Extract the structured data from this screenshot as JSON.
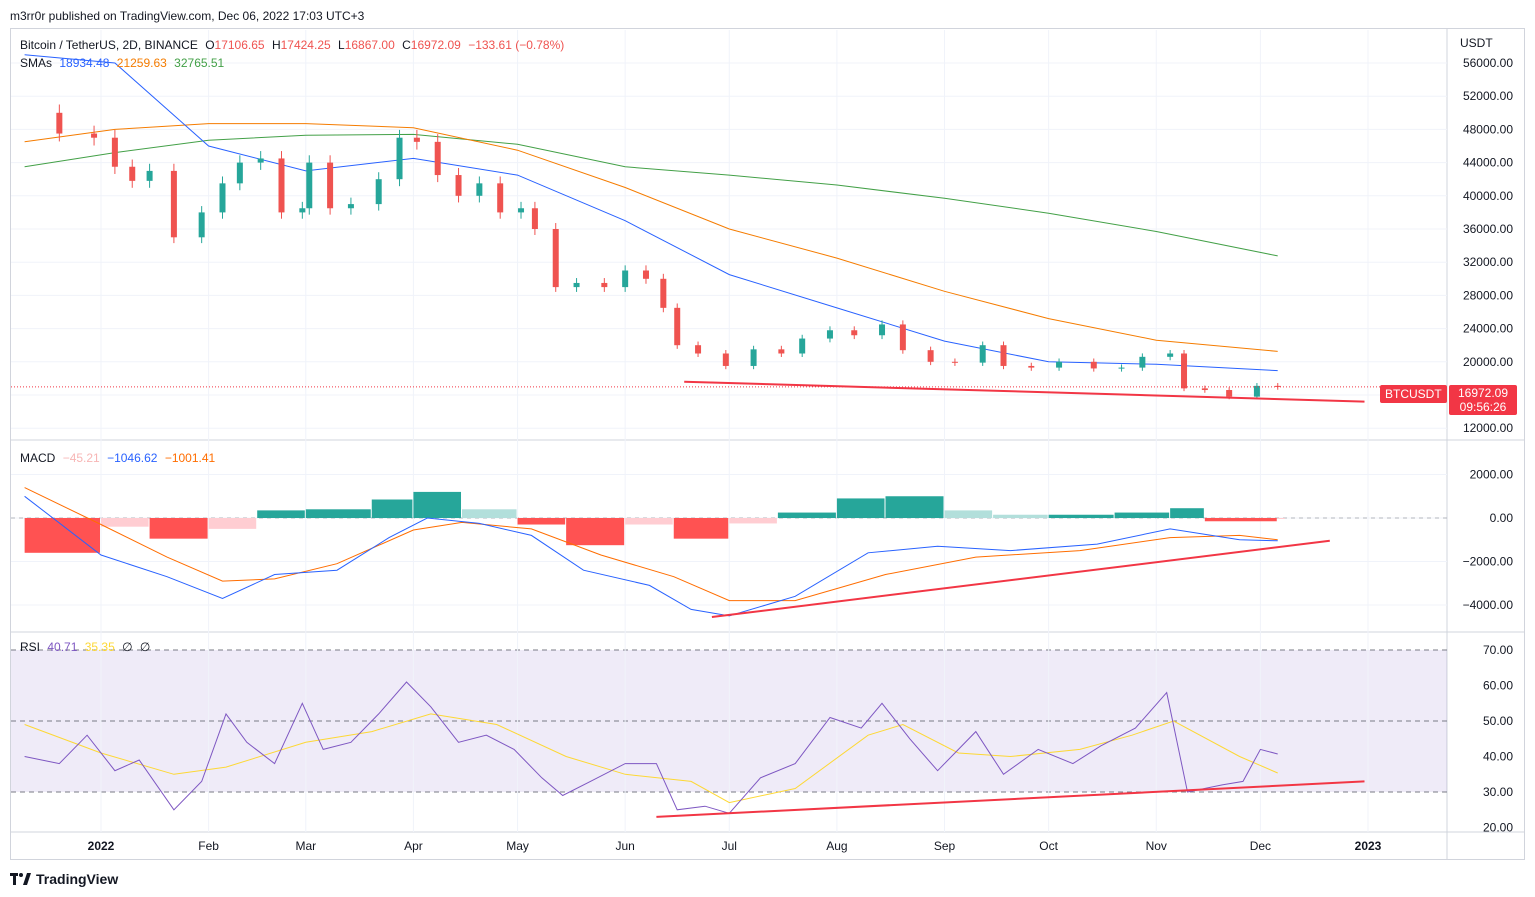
{
  "header": {
    "publisher_line": "m3rr0r published on TradingView.com, Dec 06, 2022 17:03 UTC+3"
  },
  "footer": {
    "brand": "TradingView",
    "logo_icon": "tradingview-logo-icon"
  },
  "price_pane": {
    "symbol_line": "Bitcoin / TetherUS, 2D, BINANCE",
    "ohlc": {
      "o_label": "O",
      "o": "17106.65",
      "h_label": "H",
      "h": "17424.25",
      "l_label": "L",
      "l": "16867.00",
      "c_label": "C",
      "c": "16972.09",
      "change": "−133.61 (−0.78%)"
    },
    "sma_label": "SMAs",
    "sma_values": [
      "18934.48",
      "21259.63",
      "32765.51"
    ],
    "currency": "USDT",
    "price_tag": {
      "symbol": "BTCUSDT",
      "price": "16972.09",
      "countdown": "09:56:26"
    }
  },
  "macd_pane": {
    "label": "MACD",
    "hist": "−45.21",
    "macd": "−1046.62",
    "signal": "−1001.41"
  },
  "rsi_pane": {
    "label": "RSI",
    "rsi": "40.71",
    "rsi_ma": "35.35",
    "extra1": "∅",
    "extra2": "∅"
  },
  "colors": {
    "up": "#26a69a",
    "down": "#ef5350",
    "sma_fast": "#2962ff",
    "sma_mid": "#f57c00",
    "sma_slow": "#43a047",
    "macd_line": "#2962ff",
    "signal_line": "#ff6d00",
    "rsi_line": "#7e57c2",
    "rsi_ma": "#fdd835",
    "trendline": "#f23645"
  },
  "chart_data": [
    {
      "type": "candlestick",
      "title": "Bitcoin / TetherUS, 2D, BINANCE",
      "x_ticks": [
        "2022",
        "Feb",
        "Mar",
        "Apr",
        "May",
        "Jun",
        "Jul",
        "Aug",
        "Sep",
        "Oct",
        "Nov",
        "Dec",
        "2023"
      ],
      "y_ticks": [
        12000,
        16000,
        20000,
        24000,
        28000,
        32000,
        36000,
        40000,
        44000,
        48000,
        52000,
        56000
      ],
      "ylim": [
        11000,
        58500
      ],
      "close_series_approx": [
        [
          "2021-12-10",
          50000
        ],
        [
          "2021-12-20",
          47500
        ],
        [
          "2021-12-30",
          47000
        ],
        [
          "2022-01-05",
          43500
        ],
        [
          "2022-01-10",
          41800
        ],
        [
          "2022-01-15",
          43000
        ],
        [
          "2022-01-22",
          35000
        ],
        [
          "2022-01-30",
          38000
        ],
        [
          "2022-02-05",
          41500
        ],
        [
          "2022-02-10",
          44000
        ],
        [
          "2022-02-16",
          44500
        ],
        [
          "2022-02-22",
          38000
        ],
        [
          "2022-02-28",
          38500
        ],
        [
          "2022-03-02",
          44000
        ],
        [
          "2022-03-08",
          38500
        ],
        [
          "2022-03-14",
          39000
        ],
        [
          "2022-03-22",
          42000
        ],
        [
          "2022-03-28",
          47000
        ],
        [
          "2022-04-02",
          46500
        ],
        [
          "2022-04-08",
          42500
        ],
        [
          "2022-04-14",
          40000
        ],
        [
          "2022-04-20",
          41500
        ],
        [
          "2022-04-26",
          38000
        ],
        [
          "2022-05-02",
          38500
        ],
        [
          "2022-05-06",
          36000
        ],
        [
          "2022-05-12",
          29000
        ],
        [
          "2022-05-18",
          29500
        ],
        [
          "2022-05-26",
          29000
        ],
        [
          "2022-06-01",
          31000
        ],
        [
          "2022-06-07",
          30000
        ],
        [
          "2022-06-12",
          26500
        ],
        [
          "2022-06-16",
          22000
        ],
        [
          "2022-06-22",
          21000
        ],
        [
          "2022-06-30",
          19500
        ],
        [
          "2022-07-08",
          21500
        ],
        [
          "2022-07-16",
          21000
        ],
        [
          "2022-07-22",
          22800
        ],
        [
          "2022-07-30",
          23800
        ],
        [
          "2022-08-06",
          23200
        ],
        [
          "2022-08-14",
          24500
        ],
        [
          "2022-08-20",
          21400
        ],
        [
          "2022-08-28",
          20000
        ],
        [
          "2022-09-04",
          19900
        ],
        [
          "2022-09-12",
          22000
        ],
        [
          "2022-09-18",
          19500
        ],
        [
          "2022-09-26",
          19300
        ],
        [
          "2022-10-04",
          20000
        ],
        [
          "2022-10-14",
          19200
        ],
        [
          "2022-10-22",
          19300
        ],
        [
          "2022-10-28",
          20600
        ],
        [
          "2022-11-05",
          21000
        ],
        [
          "2022-11-09",
          16800
        ],
        [
          "2022-11-15",
          16600
        ],
        [
          "2022-11-22",
          15800
        ],
        [
          "2022-11-30",
          17100
        ],
        [
          "2022-12-06",
          16972
        ]
      ],
      "sma_fast_approx": [
        [
          "2021-12-10",
          57000
        ],
        [
          "2022-01-05",
          56000
        ],
        [
          "2022-02-01",
          46000
        ],
        [
          "2022-03-01",
          43000
        ],
        [
          "2022-04-01",
          44500
        ],
        [
          "2022-05-01",
          42500
        ],
        [
          "2022-06-01",
          37000
        ],
        [
          "2022-07-01",
          30500
        ],
        [
          "2022-08-01",
          26500
        ],
        [
          "2022-09-01",
          22500
        ],
        [
          "2022-10-01",
          20000
        ],
        [
          "2022-11-01",
          19700
        ],
        [
          "2022-12-06",
          18934
        ]
      ],
      "sma_mid_approx": [
        [
          "2021-12-10",
          46500
        ],
        [
          "2022-01-05",
          48000
        ],
        [
          "2022-02-01",
          48700
        ],
        [
          "2022-03-01",
          48700
        ],
        [
          "2022-04-01",
          48200
        ],
        [
          "2022-05-01",
          45500
        ],
        [
          "2022-06-01",
          41000
        ],
        [
          "2022-07-01",
          36000
        ],
        [
          "2022-08-01",
          32500
        ],
        [
          "2022-09-01",
          28500
        ],
        [
          "2022-10-01",
          25200
        ],
        [
          "2022-11-01",
          22600
        ],
        [
          "2022-12-06",
          21259
        ]
      ],
      "sma_slow_approx": [
        [
          "2021-12-10",
          43500
        ],
        [
          "2022-01-05",
          45200
        ],
        [
          "2022-02-01",
          46700
        ],
        [
          "2022-03-01",
          47300
        ],
        [
          "2022-04-01",
          47400
        ],
        [
          "2022-05-01",
          46200
        ],
        [
          "2022-06-01",
          43500
        ],
        [
          "2022-07-01",
          42500
        ],
        [
          "2022-08-01",
          41300
        ],
        [
          "2022-09-01",
          39700
        ],
        [
          "2022-10-01",
          37900
        ],
        [
          "2022-11-01",
          35700
        ],
        [
          "2022-12-06",
          32765
        ]
      ],
      "trendline": [
        [
          "2022-06-18",
          17600
        ],
        [
          "2022-12-31",
          15200
        ]
      ],
      "current_price": 16972.09
    },
    {
      "type": "macd",
      "y_ticks": [
        -4000,
        -2000,
        0,
        2000
      ],
      "ylim": [
        -5000,
        3200
      ],
      "hist_approx": [
        [
          "2021-12-10",
          -1600
        ],
        [
          "2022-01-01",
          -400
        ],
        [
          "2022-01-15",
          -950
        ],
        [
          "2022-02-01",
          -500
        ],
        [
          "2022-02-15",
          350
        ],
        [
          "2022-03-01",
          400
        ],
        [
          "2022-03-20",
          850
        ],
        [
          "2022-04-01",
          1200
        ],
        [
          "2022-04-15",
          400
        ],
        [
          "2022-05-01",
          -300
        ],
        [
          "2022-05-15",
          -1250
        ],
        [
          "2022-06-01",
          -300
        ],
        [
          "2022-06-15",
          -950
        ],
        [
          "2022-07-01",
          -250
        ],
        [
          "2022-07-15",
          250
        ],
        [
          "2022-08-01",
          900
        ],
        [
          "2022-08-15",
          1000
        ],
        [
          "2022-09-01",
          350
        ],
        [
          "2022-09-15",
          150
        ],
        [
          "2022-10-01",
          150
        ],
        [
          "2022-10-20",
          250
        ],
        [
          "2022-11-05",
          450
        ],
        [
          "2022-11-15",
          -150
        ],
        [
          "2022-12-06",
          -45
        ]
      ],
      "macd_approx": [
        [
          "2021-12-10",
          1000
        ],
        [
          "2022-01-01",
          -1700
        ],
        [
          "2022-01-20",
          -2700
        ],
        [
          "2022-02-05",
          -3700
        ],
        [
          "2022-02-20",
          -2600
        ],
        [
          "2022-03-10",
          -2400
        ],
        [
          "2022-03-25",
          -900
        ],
        [
          "2022-04-05",
          0
        ],
        [
          "2022-04-20",
          -250
        ],
        [
          "2022-05-05",
          -800
        ],
        [
          "2022-05-20",
          -2400
        ],
        [
          "2022-06-08",
          -3100
        ],
        [
          "2022-06-20",
          -4200
        ],
        [
          "2022-07-01",
          -4500
        ],
        [
          "2022-07-20",
          -3600
        ],
        [
          "2022-08-10",
          -1600
        ],
        [
          "2022-08-30",
          -1300
        ],
        [
          "2022-09-20",
          -1500
        ],
        [
          "2022-10-15",
          -1200
        ],
        [
          "2022-11-05",
          -500
        ],
        [
          "2022-11-25",
          -1000
        ],
        [
          "2022-12-06",
          -1046
        ]
      ],
      "signal_approx": [
        [
          "2021-12-10",
          1400
        ],
        [
          "2022-01-01",
          -300
        ],
        [
          "2022-01-20",
          -1800
        ],
        [
          "2022-02-05",
          -2900
        ],
        [
          "2022-02-20",
          -2800
        ],
        [
          "2022-03-10",
          -2100
        ],
        [
          "2022-04-01",
          -550
        ],
        [
          "2022-04-15",
          -200
        ],
        [
          "2022-05-05",
          -500
        ],
        [
          "2022-05-25",
          -1700
        ],
        [
          "2022-06-15",
          -2700
        ],
        [
          "2022-07-01",
          -3800
        ],
        [
          "2022-07-20",
          -3800
        ],
        [
          "2022-08-15",
          -2600
        ],
        [
          "2022-09-10",
          -1800
        ],
        [
          "2022-10-10",
          -1500
        ],
        [
          "2022-11-05",
          -900
        ],
        [
          "2022-11-25",
          -800
        ],
        [
          "2022-12-06",
          -1001
        ]
      ],
      "trendline": [
        [
          "2022-06-26",
          -4550
        ],
        [
          "2022-12-21",
          -1050
        ]
      ]
    },
    {
      "type": "rsi",
      "y_ticks": [
        20,
        30,
        40,
        50,
        60,
        70
      ],
      "band": [
        30,
        70
      ],
      "midline": 50,
      "ylim": [
        19.5,
        72
      ],
      "rsi_approx": [
        [
          "2021-12-10",
          40
        ],
        [
          "2021-12-20",
          38
        ],
        [
          "2021-12-28",
          46
        ],
        [
          "2022-01-05",
          36
        ],
        [
          "2022-01-12",
          39
        ],
        [
          "2022-01-22",
          25
        ],
        [
          "2022-01-30",
          33
        ],
        [
          "2022-02-06",
          52
        ],
        [
          "2022-02-12",
          44
        ],
        [
          "2022-02-20",
          38
        ],
        [
          "2022-02-28",
          55
        ],
        [
          "2022-03-06",
          42
        ],
        [
          "2022-03-14",
          44
        ],
        [
          "2022-03-22",
          52
        ],
        [
          "2022-03-30",
          61
        ],
        [
          "2022-04-06",
          54
        ],
        [
          "2022-04-14",
          44
        ],
        [
          "2022-04-22",
          46
        ],
        [
          "2022-04-30",
          42
        ],
        [
          "2022-05-08",
          34
        ],
        [
          "2022-05-14",
          29
        ],
        [
          "2022-05-22",
          33
        ],
        [
          "2022-06-01",
          38
        ],
        [
          "2022-06-10",
          38
        ],
        [
          "2022-06-16",
          25
        ],
        [
          "2022-06-24",
          26
        ],
        [
          "2022-07-01",
          24
        ],
        [
          "2022-07-10",
          34
        ],
        [
          "2022-07-20",
          38
        ],
        [
          "2022-07-30",
          51
        ],
        [
          "2022-08-08",
          48
        ],
        [
          "2022-08-14",
          55
        ],
        [
          "2022-08-22",
          45
        ],
        [
          "2022-08-30",
          36
        ],
        [
          "2022-09-10",
          47
        ],
        [
          "2022-09-18",
          35
        ],
        [
          "2022-09-28",
          42
        ],
        [
          "2022-10-08",
          38
        ],
        [
          "2022-10-16",
          43
        ],
        [
          "2022-10-26",
          48
        ],
        [
          "2022-11-04",
          58
        ],
        [
          "2022-11-10",
          30
        ],
        [
          "2022-11-20",
          32
        ],
        [
          "2022-11-26",
          33
        ],
        [
          "2022-12-01",
          42
        ],
        [
          "2022-12-06",
          40.7
        ]
      ],
      "rsi_ma_approx": [
        [
          "2021-12-10",
          49
        ],
        [
          "2022-01-01",
          41
        ],
        [
          "2022-01-22",
          35
        ],
        [
          "2022-02-06",
          37
        ],
        [
          "2022-03-01",
          44
        ],
        [
          "2022-03-20",
          47
        ],
        [
          "2022-04-06",
          52
        ],
        [
          "2022-04-25",
          49
        ],
        [
          "2022-05-15",
          40
        ],
        [
          "2022-06-01",
          35
        ],
        [
          "2022-06-20",
          33
        ],
        [
          "2022-07-01",
          27
        ],
        [
          "2022-07-20",
          31
        ],
        [
          "2022-08-10",
          46
        ],
        [
          "2022-08-20",
          49
        ],
        [
          "2022-09-05",
          41
        ],
        [
          "2022-09-20",
          40
        ],
        [
          "2022-10-10",
          42
        ],
        [
          "2022-10-25",
          46
        ],
        [
          "2022-11-06",
          50
        ],
        [
          "2022-11-25",
          40
        ],
        [
          "2022-12-06",
          35.35
        ]
      ],
      "trendline": [
        [
          "2022-06-10",
          23
        ],
        [
          "2022-12-31",
          33
        ]
      ]
    }
  ]
}
